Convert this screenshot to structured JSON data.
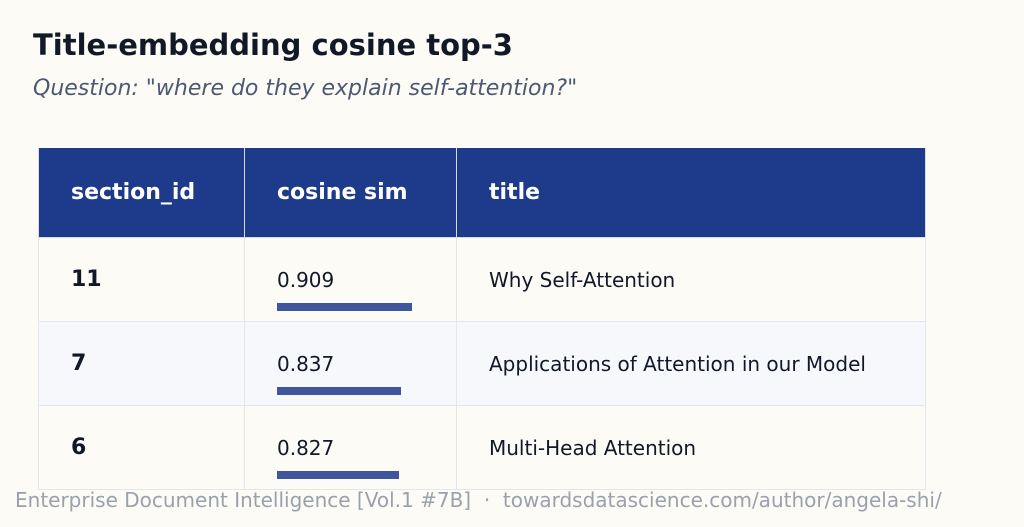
{
  "header": {
    "title": "Title-embedding cosine top-3",
    "question": "Question: \"where do they explain self-attention?\""
  },
  "table": {
    "columns": [
      "section_id",
      "cosine sim",
      "title"
    ],
    "rows": [
      [
        11,
        0.909,
        "Why Self-Attention"
      ],
      [
        7,
        0.837,
        "Applications of Attention in our Model"
      ],
      [
        6,
        0.827,
        "Multi-Head Attention"
      ]
    ]
  },
  "footer": "Enterprise Document Intelligence [Vol.1 #7B]  ·  towardsdatascience.com/author/angela-shi/"
}
